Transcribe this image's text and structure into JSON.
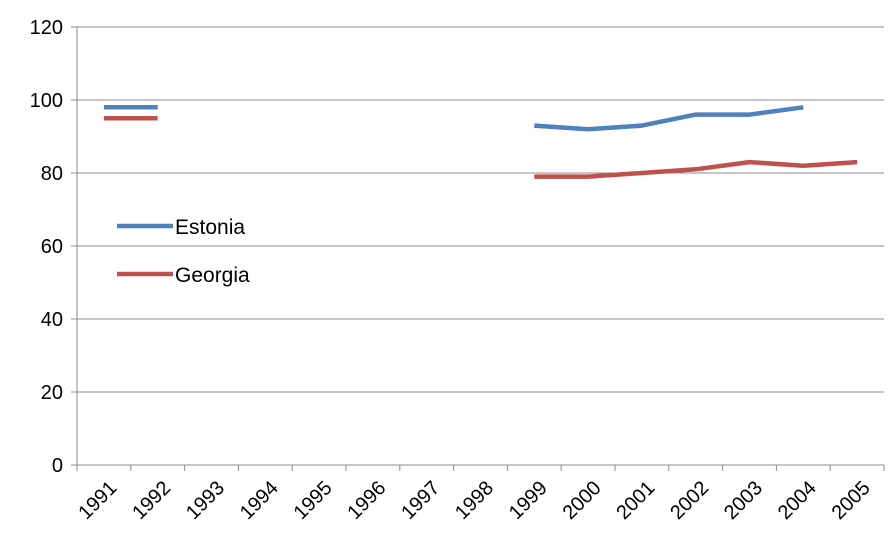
{
  "chart_data": {
    "type": "line",
    "title": "",
    "xlabel": "",
    "ylabel": "",
    "categories": [
      "1991",
      "1992",
      "1993",
      "1994",
      "1995",
      "1996",
      "1997",
      "1998",
      "1999",
      "2000",
      "2001",
      "2002",
      "2003",
      "2004",
      "2005"
    ],
    "ylim": [
      0,
      120
    ],
    "yticks": [
      0,
      20,
      40,
      60,
      80,
      100,
      120
    ],
    "grid": true,
    "legend_position": "left",
    "series": [
      {
        "name": "Estonia",
        "color": "#4F81BD",
        "values": [
          98,
          98,
          null,
          null,
          null,
          null,
          null,
          null,
          93,
          92,
          93,
          96,
          96,
          98,
          null
        ]
      },
      {
        "name": "Georgia",
        "color": "#C0504D",
        "values": [
          95,
          95,
          null,
          null,
          null,
          null,
          null,
          null,
          79,
          79,
          80,
          81,
          83,
          82,
          83
        ]
      }
    ]
  }
}
